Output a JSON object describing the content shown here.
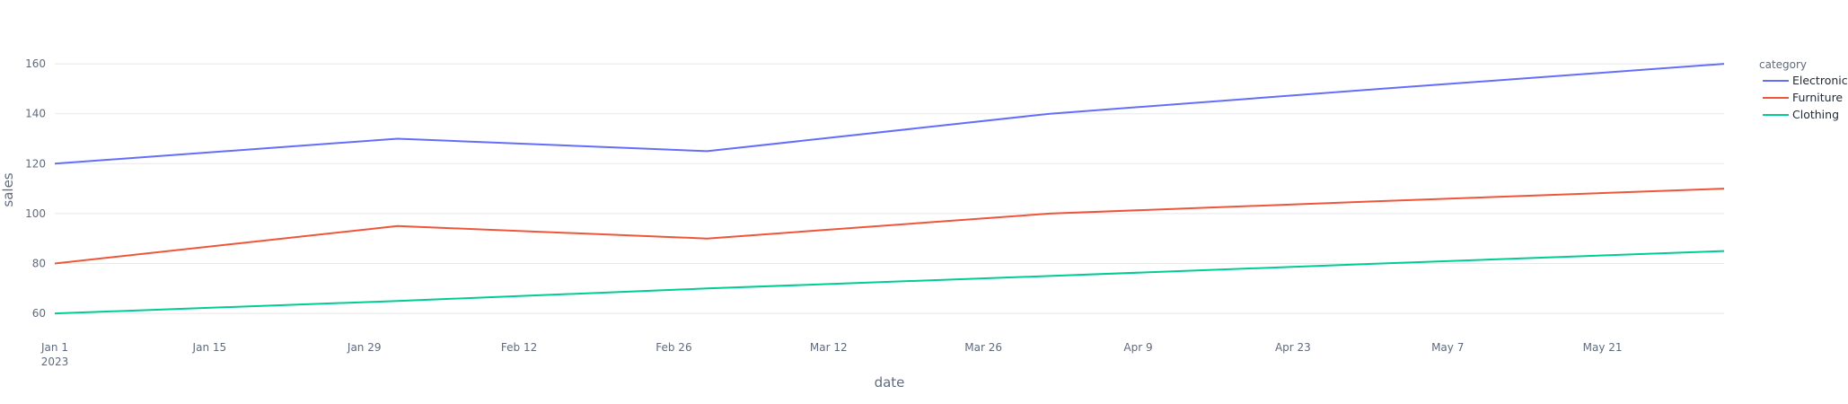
{
  "chart_data": {
    "type": "line",
    "xlabel": "date",
    "ylabel": "sales",
    "x": [
      "2023-01-01",
      "2023-02-01",
      "2023-03-01",
      "2023-04-01",
      "2023-05-01",
      "2023-06-01"
    ],
    "xlim": [
      "2023-01-01",
      "2023-06-01"
    ],
    "ylim": [
      55,
      164
    ],
    "x_ticks": [
      {
        "date": "2023-01-01",
        "label": "Jan 1",
        "sublabel": "2023"
      },
      {
        "date": "2023-01-15",
        "label": "Jan 15"
      },
      {
        "date": "2023-01-29",
        "label": "Jan 29"
      },
      {
        "date": "2023-02-12",
        "label": "Feb 12"
      },
      {
        "date": "2023-02-26",
        "label": "Feb 26"
      },
      {
        "date": "2023-03-12",
        "label": "Mar 12"
      },
      {
        "date": "2023-03-26",
        "label": "Mar 26"
      },
      {
        "date": "2023-04-09",
        "label": "Apr 9"
      },
      {
        "date": "2023-04-23",
        "label": "Apr 23"
      },
      {
        "date": "2023-05-07",
        "label": "May 7"
      },
      {
        "date": "2023-05-21",
        "label": "May 21"
      }
    ],
    "y_ticks": [
      60,
      80,
      100,
      120,
      140,
      160
    ],
    "grid": true,
    "legend": {
      "title": "category",
      "placement": "right"
    },
    "series": [
      {
        "name": "Electronics",
        "color": "#636efa",
        "values": [
          120,
          130,
          125,
          140,
          150,
          160
        ]
      },
      {
        "name": "Furniture",
        "color": "#ef553b",
        "values": [
          80,
          95,
          90,
          100,
          105,
          110
        ]
      },
      {
        "name": "Clothing",
        "color": "#00cc96",
        "values": [
          60,
          65,
          70,
          75,
          80,
          85
        ]
      }
    ]
  }
}
